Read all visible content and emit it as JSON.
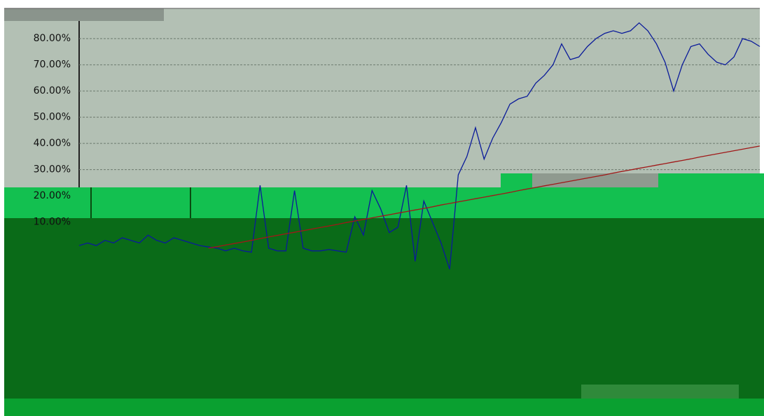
{
  "chart_data": {
    "type": "line",
    "categories": [
      null,
      null,
      null,
      null,
      null,
      null,
      null,
      null,
      null,
      null,
      null,
      null,
      null,
      null,
      null,
      null,
      null,
      null,
      null,
      null,
      null,
      null,
      null,
      null,
      null,
      null,
      null,
      null,
      null,
      null,
      null,
      null,
      null,
      null,
      null,
      null,
      null,
      null,
      null,
      null,
      null,
      null,
      null,
      null,
      null,
      null,
      null,
      null,
      null,
      null,
      null,
      null,
      null,
      null,
      null,
      null,
      null,
      null,
      null,
      null,
      null,
      null,
      null,
      null,
      null,
      null,
      null,
      null,
      null,
      null,
      null,
      null,
      null,
      null,
      null,
      null,
      null,
      null,
      null,
      null
    ],
    "series": [
      {
        "color": "#0a1a9a",
        "values": [
          1,
          2,
          1,
          3,
          2,
          4,
          3,
          2,
          5,
          3,
          2,
          4,
          3,
          2,
          1,
          0.5,
          0,
          -1,
          0,
          -1,
          -1.5,
          24,
          0,
          -1,
          -1,
          22,
          0,
          -1,
          -1,
          -0.5,
          -1,
          -1.5,
          12,
          5,
          22,
          15,
          6,
          8,
          24,
          -5,
          18,
          10,
          2,
          -8,
          28,
          35,
          46,
          34,
          42,
          48,
          55,
          57,
          58,
          63,
          66,
          70,
          78,
          72,
          73,
          77,
          80,
          82,
          83,
          82,
          83,
          86,
          83,
          78,
          71,
          60,
          70,
          77,
          78,
          74,
          71,
          70,
          73,
          80,
          79,
          77
        ]
      },
      {
        "color": "#a01818",
        "values": [
          null,
          null,
          null,
          null,
          null,
          null,
          null,
          null,
          null,
          null,
          null,
          null,
          null,
          null,
          null,
          0,
          0.6,
          1.2,
          1.8,
          2.4,
          3.0,
          3.7,
          4.3,
          4.9,
          5.5,
          6.1,
          6.7,
          7.3,
          7.9,
          8.5,
          9.1,
          9.8,
          10.4,
          11.0,
          11.6,
          12.2,
          12.8,
          13.4,
          14.0,
          14.6,
          15.2,
          15.8,
          16.5,
          17.1,
          17.7,
          18.3,
          18.9,
          19.5,
          20.1,
          20.7,
          21.3,
          22.0,
          22.6,
          23.2,
          23.8,
          24.4,
          25.0,
          25.6,
          26.2,
          26.8,
          27.4,
          28.0,
          28.7,
          29.3,
          29.9,
          30.5,
          31.1,
          31.7,
          32.3,
          32.9,
          33.5,
          34.1,
          34.8,
          35.4,
          36.0,
          36.6,
          37.2,
          37.8,
          38.4,
          39.0
        ]
      }
    ],
    "ylim": [
      -20,
      91
    ],
    "yticks": [
      {
        "value": 10,
        "label": "10.00%"
      },
      {
        "value": 20,
        "label": "20.00%"
      },
      {
        "value": 30,
        "label": "30.00%"
      },
      {
        "value": 40,
        "label": "40.00%"
      },
      {
        "value": 50,
        "label": "50.00%"
      },
      {
        "value": 60,
        "label": "60.00%"
      },
      {
        "value": 70,
        "label": "70.00%"
      },
      {
        "value": 80,
        "label": "80.00%"
      }
    ],
    "grid": true
  }
}
